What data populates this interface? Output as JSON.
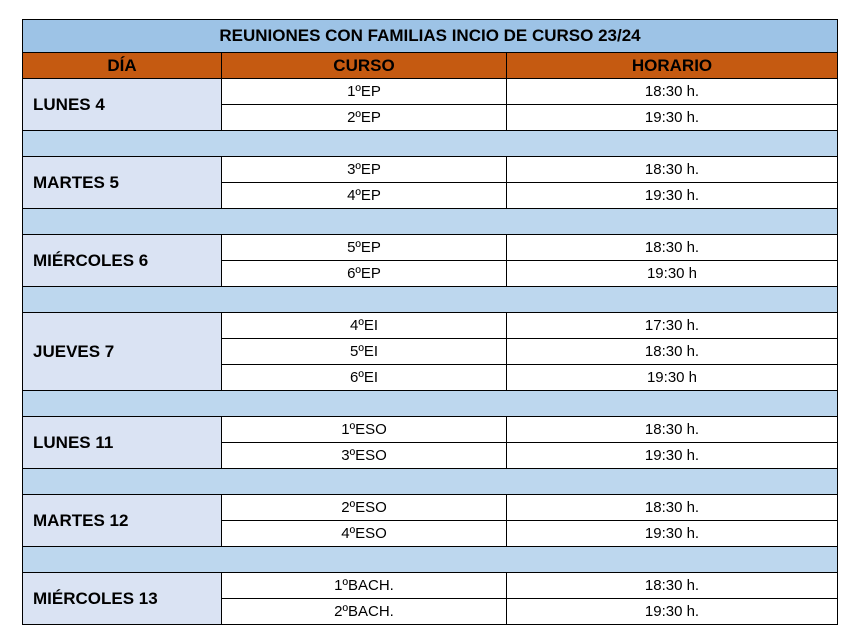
{
  "title": "REUNIONES CON FAMILIAS INCIO DE CURSO 23/24",
  "headers": {
    "dia": "DÍA",
    "curso": "CURSO",
    "horario": "HORARIO"
  },
  "days": [
    {
      "label": "LUNES 4",
      "rows": [
        {
          "curso": "1ºEP",
          "horario": "18:30 h."
        },
        {
          "curso": "2ºEP",
          "horario": "19:30 h."
        }
      ]
    },
    {
      "label": "MARTES 5",
      "rows": [
        {
          "curso": "3ºEP",
          "horario": "18:30 h."
        },
        {
          "curso": "4ºEP",
          "horario": "19:30 h."
        }
      ]
    },
    {
      "label": "MIÉRCOLES 6",
      "rows": [
        {
          "curso": "5ºEP",
          "horario": "18:30 h."
        },
        {
          "curso": "6ºEP",
          "horario": "19:30 h"
        }
      ]
    },
    {
      "label": "JUEVES 7",
      "rows": [
        {
          "curso": "4ºEI",
          "horario": "17:30 h."
        },
        {
          "curso": "5ºEI",
          "horario": "18:30 h."
        },
        {
          "curso": "6ºEI",
          "horario": "19:30 h"
        }
      ]
    },
    {
      "label": "LUNES 11",
      "rows": [
        {
          "curso": "1ºESO",
          "horario": "18:30 h."
        },
        {
          "curso": "3ºESO",
          "horario": "19:30 h."
        }
      ]
    },
    {
      "label": "MARTES 12",
      "rows": [
        {
          "curso": "2ºESO",
          "horario": "18:30 h."
        },
        {
          "curso": "4ºESO",
          "horario": "19:30 h."
        }
      ]
    },
    {
      "label": "MIÉRCOLES 13",
      "rows": [
        {
          "curso": "1ºBACH.",
          "horario": "18:30 h."
        },
        {
          "curso": "2ºBACH.",
          "horario": "19:30 h."
        }
      ]
    }
  ]
}
